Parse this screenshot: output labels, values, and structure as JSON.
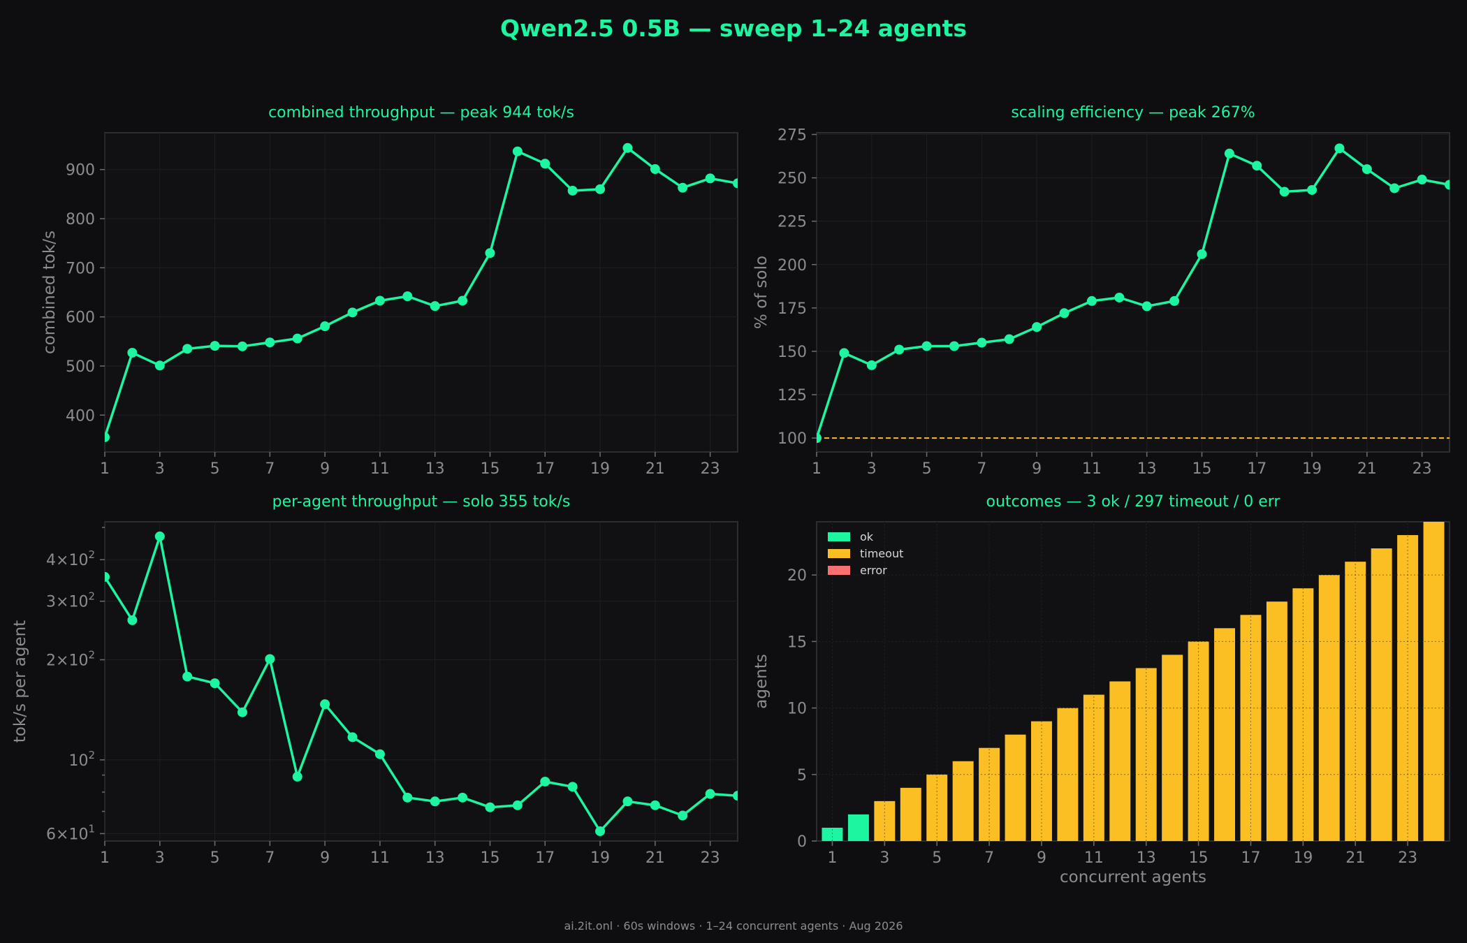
{
  "title": "Qwen2.5 0.5B — sweep 1–24 agents",
  "footer": "ai.2it.onl · 60s windows · 1–24 concurrent agents · Aug 2026",
  "colors": {
    "accent": "#1df5a0",
    "timeout": "#fbbf24",
    "error": "#f87171",
    "reference": "#fbbf24"
  },
  "chart_data": [
    {
      "id": "combined",
      "type": "line",
      "title": "combined throughput — peak 944 tok/s",
      "xlabel": "",
      "ylabel": "combined tok/s",
      "x": [
        1,
        2,
        3,
        4,
        5,
        6,
        7,
        8,
        9,
        10,
        11,
        12,
        13,
        14,
        15,
        16,
        17,
        18,
        19,
        20,
        21,
        22,
        23,
        24
      ],
      "y": [
        355,
        527,
        501,
        535,
        541,
        540,
        548,
        556,
        581,
        609,
        633,
        642,
        622,
        633,
        730,
        937,
        912,
        857,
        860,
        944,
        901,
        863,
        882,
        872
      ],
      "xlim": [
        1,
        24
      ],
      "ylim": [
        325,
        975
      ],
      "xticks": [
        1,
        3,
        5,
        7,
        9,
        11,
        13,
        15,
        17,
        19,
        21,
        23
      ],
      "yticks": [
        400,
        500,
        600,
        700,
        800,
        900
      ],
      "grid": true
    },
    {
      "id": "efficiency",
      "type": "line",
      "title": "scaling efficiency — peak 267%",
      "xlabel": "",
      "ylabel": "% of solo",
      "x": [
        1,
        2,
        3,
        4,
        5,
        6,
        7,
        8,
        9,
        10,
        11,
        12,
        13,
        14,
        15,
        16,
        17,
        18,
        19,
        20,
        21,
        22,
        23,
        24
      ],
      "y": [
        100,
        149,
        142,
        151,
        153,
        153,
        155,
        157,
        164,
        172,
        179,
        181,
        176,
        179,
        206,
        264,
        257,
        242,
        243,
        267,
        255,
        244,
        249,
        246
      ],
      "reference_line": 100,
      "xlim": [
        1,
        24
      ],
      "ylim": [
        92,
        276
      ],
      "xticks": [
        1,
        3,
        5,
        7,
        9,
        11,
        13,
        15,
        17,
        19,
        21,
        23
      ],
      "yticks": [
        100,
        125,
        150,
        175,
        200,
        225,
        250,
        275
      ],
      "grid": true
    },
    {
      "id": "per_agent",
      "type": "line",
      "title": "per-agent throughput — solo 355 tok/s",
      "xlabel": "",
      "ylabel": "tok/s per agent",
      "yscale": "log",
      "x": [
        1,
        2,
        3,
        4,
        5,
        6,
        7,
        8,
        9,
        10,
        11,
        12,
        13,
        14,
        15,
        16,
        17,
        18,
        19,
        20,
        21,
        22,
        23,
        24
      ],
      "y": [
        355,
        263,
        470,
        178,
        170,
        139,
        201,
        89,
        147,
        117,
        104,
        77,
        75,
        77,
        72,
        73,
        86,
        83,
        61,
        75,
        73,
        68,
        79,
        78
      ],
      "xlim": [
        1,
        24
      ],
      "ylim": [
        57,
        520
      ],
      "xticks": [
        1,
        3,
        5,
        7,
        9,
        11,
        13,
        15,
        17,
        19,
        21,
        23
      ],
      "yticks": [
        60,
        100,
        200,
        300,
        400
      ],
      "ytick_labels": [
        {
          "base": "6",
          "exp": "1"
        },
        {
          "base": "",
          "exp": "2"
        },
        {
          "base": "2",
          "exp": "2"
        },
        {
          "base": "3",
          "exp": "2"
        },
        {
          "base": "4",
          "exp": "2"
        }
      ],
      "grid": true
    },
    {
      "id": "outcomes",
      "type": "bar",
      "stacked": true,
      "title": "outcomes — 3 ok / 297 timeout / 0 err",
      "xlabel": "concurrent agents",
      "ylabel": "agents",
      "categories": [
        1,
        2,
        3,
        4,
        5,
        6,
        7,
        8,
        9,
        10,
        11,
        12,
        13,
        14,
        15,
        16,
        17,
        18,
        19,
        20,
        21,
        22,
        23,
        24
      ],
      "series": [
        {
          "name": "ok",
          "values": [
            1,
            2,
            0,
            0,
            0,
            0,
            0,
            0,
            0,
            0,
            0,
            0,
            0,
            0,
            0,
            0,
            0,
            0,
            0,
            0,
            0,
            0,
            0,
            0
          ]
        },
        {
          "name": "timeout",
          "values": [
            0,
            0,
            3,
            4,
            5,
            6,
            7,
            8,
            9,
            10,
            11,
            12,
            13,
            14,
            15,
            16,
            17,
            18,
            19,
            20,
            21,
            22,
            23,
            24
          ]
        },
        {
          "name": "error",
          "values": [
            0,
            0,
            0,
            0,
            0,
            0,
            0,
            0,
            0,
            0,
            0,
            0,
            0,
            0,
            0,
            0,
            0,
            0,
            0,
            0,
            0,
            0,
            0,
            0
          ]
        }
      ],
      "xlim": [
        0.4,
        24.6
      ],
      "ylim": [
        0,
        24
      ],
      "xticks": [
        1,
        3,
        5,
        7,
        9,
        11,
        13,
        15,
        17,
        19,
        21,
        23
      ],
      "yticks": [
        0,
        5,
        10,
        15,
        20
      ],
      "legend": "top-left",
      "grid": true
    }
  ]
}
